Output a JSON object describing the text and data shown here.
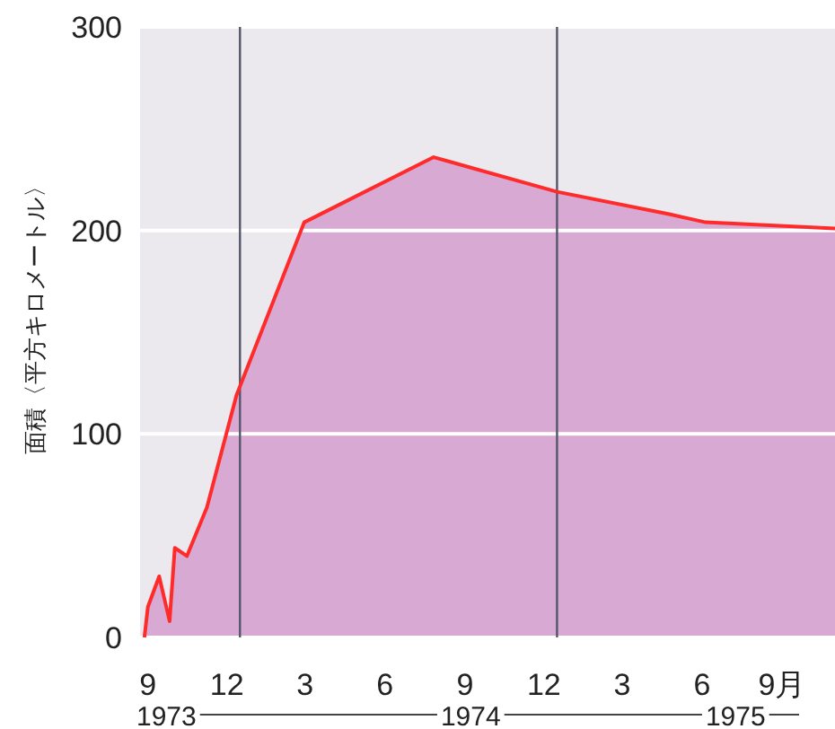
{
  "chart_data": {
    "type": "area",
    "ylabel": "面積〈平方キロメートル〉",
    "x": [
      "1973-08-28",
      "1973-09-01",
      "1973-09-14",
      "1973-09-26",
      "1973-10-02",
      "1973-10-16",
      "1973-11-08",
      "1973-12-12",
      "1974-02-28",
      "1974-07-27",
      "1974-12-16",
      "1975-04-24",
      "1975-06-05",
      "1975-11-01"
    ],
    "series": [
      {
        "color": "#d7a9d3",
        "values": [
          0,
          15,
          30,
          8,
          44,
          40,
          64,
          119,
          204,
          236,
          219,
          208,
          204,
          201
        ]
      }
    ],
    "xlim": [
      "1973-08-23",
      "1975-11-01"
    ],
    "xticks": [
      {
        "value": "1973-09",
        "label": "9"
      },
      {
        "value": "1973-12",
        "label": "12"
      },
      {
        "value": "1974-03",
        "label": "3"
      },
      {
        "value": "1974-06",
        "label": "6"
      },
      {
        "value": "1974-09",
        "label": "9"
      },
      {
        "value": "1974-12",
        "label": "12"
      },
      {
        "value": "1975-03",
        "label": "3"
      },
      {
        "value": "1975-06",
        "label": "6"
      },
      {
        "value": "1975-09",
        "label": "9月"
      }
    ],
    "ylim": [
      0,
      300
    ],
    "yticks": [
      0,
      100,
      200,
      300
    ],
    "grid": "y",
    "ref_lines": [
      {
        "axis": "x",
        "value": "1973-12-16",
        "color": "#55556a"
      },
      {
        "axis": "x",
        "value": "1974-12-16",
        "color": "#55556a"
      }
    ],
    "annotations": [
      "1973",
      "1974",
      "1975"
    ]
  }
}
